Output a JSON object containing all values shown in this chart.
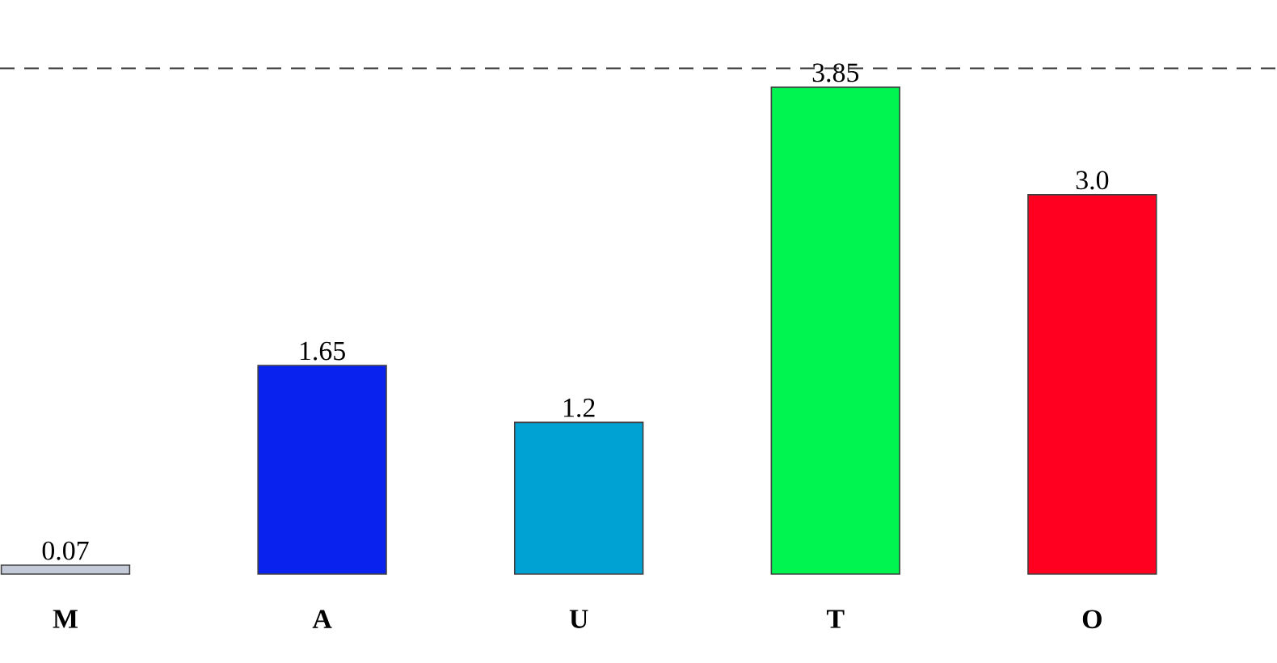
{
  "chart_data": {
    "type": "bar",
    "categories": [
      "M",
      "A",
      "U",
      "T",
      "O"
    ],
    "values": [
      0.07,
      1.65,
      1.2,
      3.85,
      3.0
    ],
    "colors": [
      "#c4cad8",
      "#0a22ee",
      "#00a2d4",
      "#00f550",
      "#ff0020"
    ],
    "value_labels": [
      "0.07",
      "1.65",
      "1.2",
      "3.85",
      "3.0"
    ],
    "ref_lines": [
      {
        "axis": "y",
        "value": 4.0,
        "line_style": "dashed",
        "color": "#333333"
      }
    ]
  }
}
